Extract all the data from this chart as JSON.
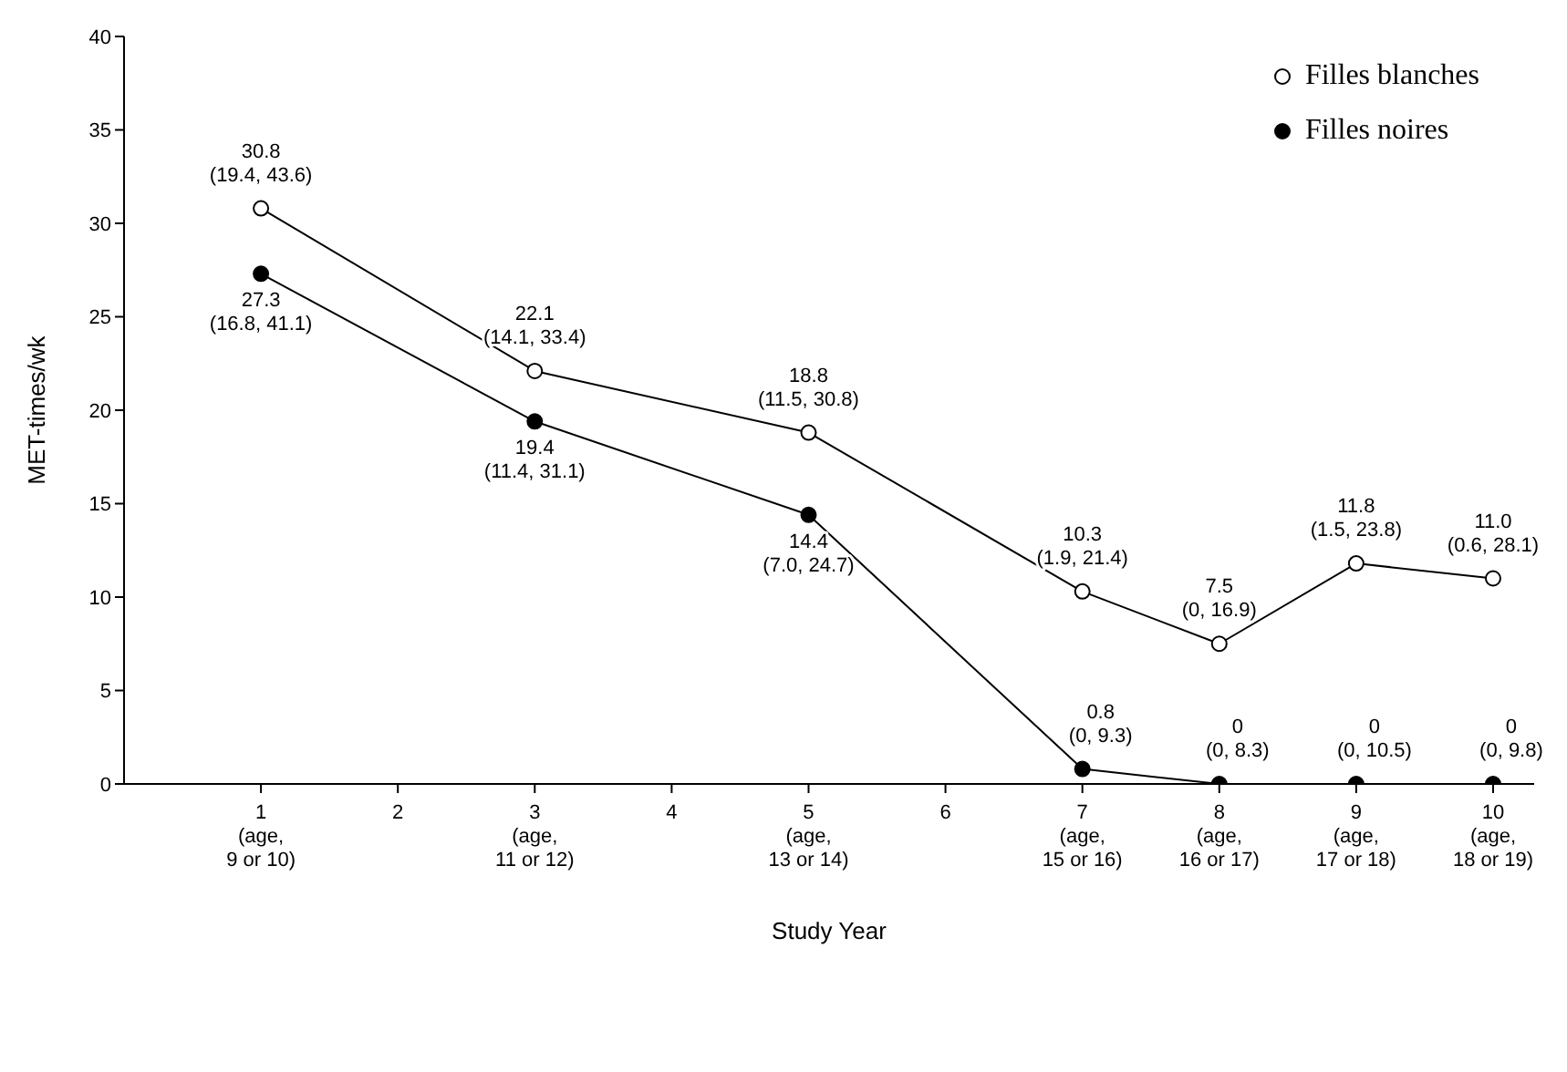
{
  "chart_data": {
    "type": "line",
    "xlabel": "Study Year",
    "ylabel": "MET-times/wk",
    "x": [
      1,
      3,
      5,
      7,
      8,
      9,
      10
    ],
    "xlim": [
      0,
      10.3
    ],
    "xticks": [
      {
        "value": 1,
        "label": "1\n(age,\n9 or 10)"
      },
      2,
      {
        "value": 3,
        "label": "3\n(age,\n11 or 12)"
      },
      4,
      {
        "value": 5,
        "label": "5\n(age,\n13 or 14)"
      },
      6,
      {
        "value": 7,
        "label": "7\n(age,\n15 or 16)"
      },
      {
        "value": 8,
        "label": "8\n(age,\n16 or 17)"
      },
      {
        "value": 9,
        "label": "9\n(age,\n17 or 18)"
      },
      {
        "value": 10,
        "label": "10\n(age,\n18 or 19)"
      }
    ],
    "ylim": [
      0,
      40
    ],
    "yticks": [
      0,
      5,
      10,
      15,
      20,
      25,
      30,
      35,
      40
    ],
    "grid": false,
    "legend": "top right",
    "marker": "circle",
    "line_style": "solid",
    "series": [
      {
        "name": "Filles blanches",
        "color": "#ffffff",
        "values": [
          30.8,
          22.1,
          18.8,
          10.3,
          7.5,
          11.8,
          11.0
        ],
        "value_labels": [
          "30.8\n(19.4, 43.6)",
          "22.1\n(14.1, 33.4)",
          "18.8\n(11.5, 30.8)",
          "10.3\n(1.9, 21.4)",
          "7.5\n(0, 16.9)",
          "11.8\n(1.5, 23.8)",
          "11.0\n(0.6, 28.1)"
        ]
      },
      {
        "name": "Filles noires",
        "color": "#000000",
        "values": [
          27.3,
          19.4,
          14.4,
          0.8,
          0,
          0,
          0
        ],
        "value_labels": [
          "27.3\n(16.8, 41.1)",
          "19.4\n(11.4, 31.1)",
          "14.4\n(7.0, 24.7)",
          "0.8\n(0, 9.3)",
          "0\n(0, 8.3)",
          "0\n(0, 10.5)",
          "0\n(0, 9.8)"
        ]
      }
    ]
  }
}
